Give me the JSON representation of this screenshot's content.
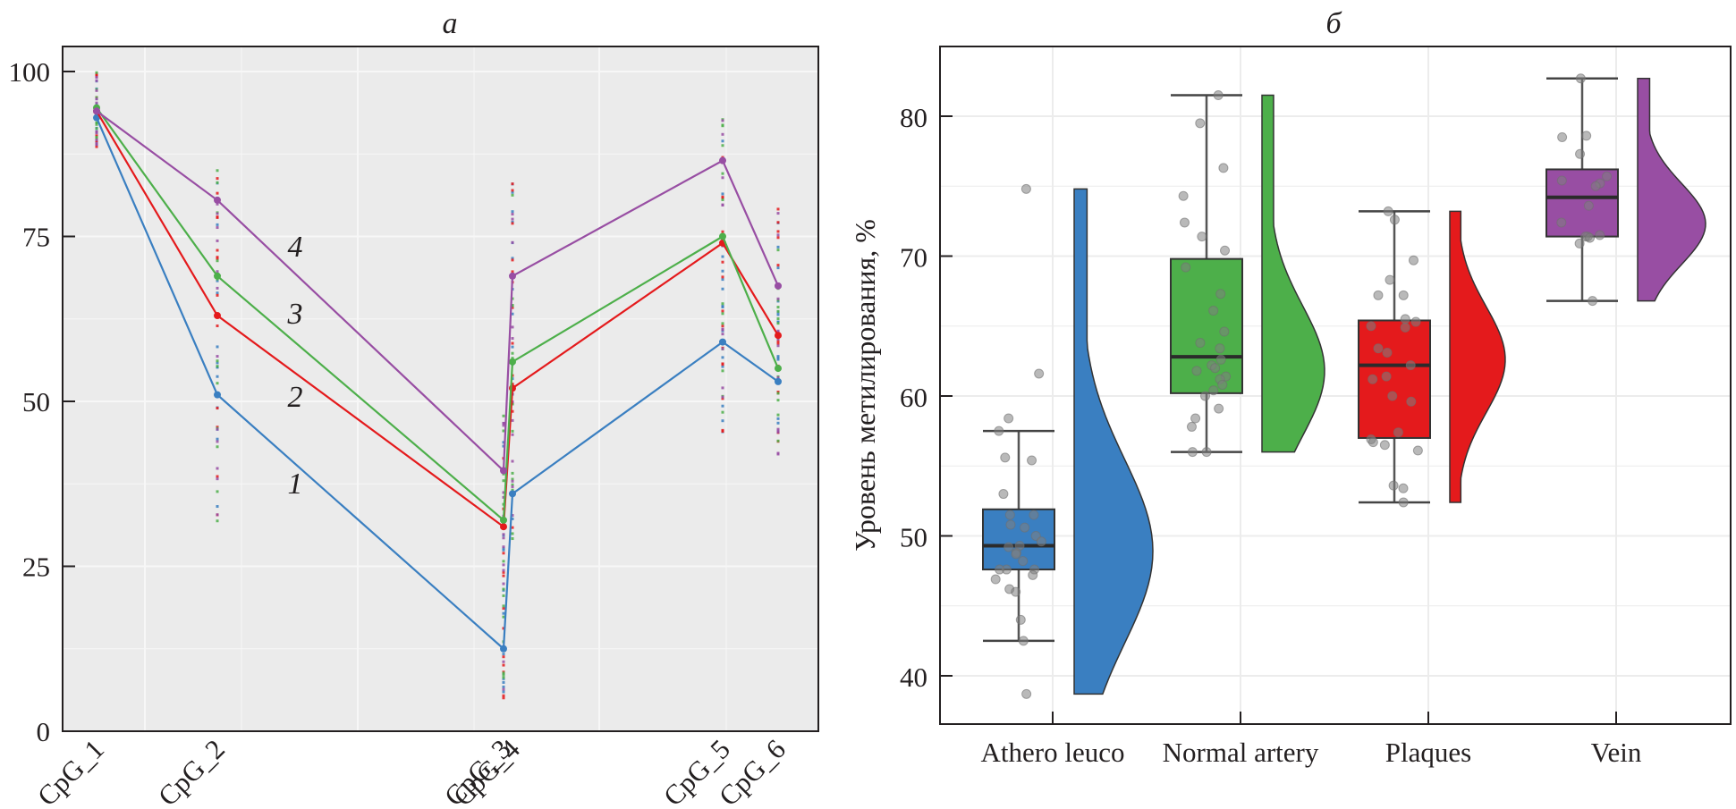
{
  "chart_data": [
    {
      "panel": "а",
      "type": "line",
      "title": "а",
      "xlabel": "",
      "ylabel": "",
      "ylim": [
        0,
        100
      ],
      "yticks": [
        0,
        25,
        50,
        75,
        100
      ],
      "categories": [
        "CpG_1",
        "CpG_2",
        "CpG_3",
        "CpG_4",
        "CpG_5",
        "CpG_6"
      ],
      "category_positions": [
        0,
        1,
        3.37,
        3.45,
        5.2,
        5.66
      ],
      "grid": true,
      "background": "#ebebeb",
      "legend": "inline-labels",
      "series": [
        {
          "name": "1",
          "color": "#3a7fc1",
          "values": [
            93,
            51,
            12.5,
            36,
            59,
            53
          ]
        },
        {
          "name": "2",
          "color": "#e41a1c",
          "values": [
            94,
            63,
            31,
            52,
            74,
            60
          ]
        },
        {
          "name": "3",
          "color": "#4daf4a",
          "values": [
            94.5,
            69,
            32,
            56,
            75,
            55
          ]
        },
        {
          "name": "4",
          "color": "#984ea3",
          "values": [
            94,
            80.5,
            39.5,
            69,
            86.5,
            67.5
          ]
        }
      ],
      "point_ranges": [
        {
          "category": "CpG_1",
          "min": 88,
          "max": 100
        },
        {
          "category": "CpG_2",
          "min": 31.5,
          "max": 85.5
        },
        {
          "category": "CpG_3",
          "min": 5,
          "max": 51
        },
        {
          "category": "CpG_4",
          "min": 28,
          "max": 83.5
        },
        {
          "category": "CpG_5",
          "min": 44,
          "max": 94.5
        },
        {
          "category": "CpG_6",
          "min": 42,
          "max": 80
        }
      ]
    },
    {
      "panel": "б",
      "type": "box",
      "title": "б",
      "xlabel": "",
      "ylabel": "Уровень метилирования, %",
      "ylim": [
        36.5,
        84.8
      ],
      "yticks": [
        40,
        50,
        60,
        70,
        80
      ],
      "categories": [
        "Athero leuco",
        "Normal artery",
        "Plaques",
        "Vein"
      ],
      "grid": true,
      "legend": "none",
      "groups": [
        {
          "name": "Athero leuco",
          "color": "#3a7fc1",
          "whisker_low": 42.5,
          "q1": 47.6,
          "median": 49.3,
          "q3": 51.9,
          "whisker_high": 57.5,
          "violin_min": 38.7,
          "violin_max": 74.8,
          "violin_mode": 48.9,
          "points": [
            74.8,
            61.6,
            58.4,
            57.5,
            55.6,
            55.4,
            53.0,
            51.5,
            51.5,
            50.8,
            50.6,
            50.0,
            49.6,
            49.3,
            49.2,
            48.8,
            48.7,
            48.2,
            47.6,
            47.6,
            47.6,
            47.2,
            46.9,
            46.2,
            46.0,
            44.0,
            42.5,
            38.7
          ]
        },
        {
          "name": "Normal artery",
          "color": "#4daf4a",
          "whisker_low": 56.0,
          "q1": 60.2,
          "median": 62.8,
          "q3": 69.8,
          "whisker_high": 81.5,
          "violin_min": 56.0,
          "violin_max": 81.5,
          "violin_mode": 61.8,
          "points": [
            81.5,
            79.5,
            76.3,
            74.3,
            72.4,
            71.4,
            70.4,
            69.2,
            67.3,
            66.1,
            64.6,
            63.8,
            63.4,
            62.6,
            62.2,
            62.0,
            61.8,
            61.4,
            61.2,
            60.8,
            60.4,
            60.0,
            59.1,
            58.4,
            57.8,
            56.0,
            56.0
          ]
        },
        {
          "name": "Plaques",
          "color": "#e41a1c",
          "whisker_low": 52.4,
          "q1": 57.0,
          "median": 62.2,
          "q3": 65.4,
          "whisker_high": 73.2,
          "violin_min": 52.4,
          "violin_max": 73.2,
          "violin_mode": 62.6,
          "points": [
            73.2,
            72.6,
            69.7,
            68.3,
            67.2,
            67.2,
            65.5,
            65.3,
            65.0,
            64.9,
            63.4,
            63.1,
            62.2,
            61.4,
            61.2,
            60.0,
            59.6,
            57.4,
            56.9,
            56.7,
            56.5,
            56.1,
            53.6,
            53.4,
            52.4
          ]
        },
        {
          "name": "Vein",
          "color": "#984ea3",
          "whisker_low": 66.8,
          "q1": 71.4,
          "median": 74.2,
          "q3": 76.2,
          "whisker_high": 82.7,
          "violin_min": 66.8,
          "violin_max": 82.7,
          "violin_mode": 72.3,
          "points": [
            82.7,
            78.5,
            78.6,
            77.3,
            75.7,
            75.4,
            75.2,
            75.0,
            73.6,
            72.4,
            71.5,
            71.4,
            71.4,
            71.3,
            70.9,
            66.8
          ]
        }
      ]
    }
  ],
  "labels": {
    "panel_a": "а",
    "panel_b": "б"
  }
}
